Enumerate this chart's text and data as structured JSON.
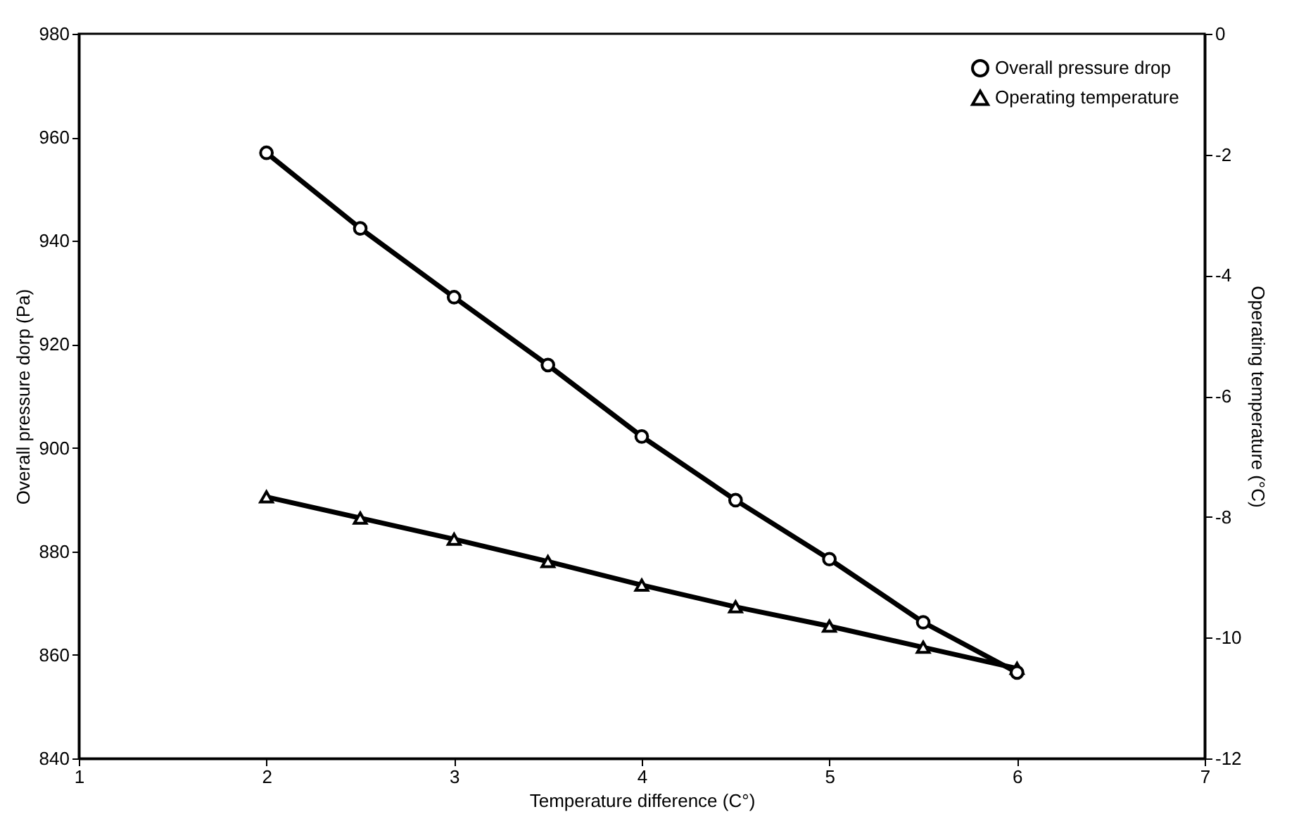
{
  "chart_data": {
    "type": "line",
    "xlabel": "Temperature difference (C°)",
    "ylabel": "Overall pressure dorp (Pa)",
    "y2label": "Operating temperature (°C)",
    "x": [
      2,
      2.5,
      3,
      3.5,
      4,
      4.5,
      5,
      5.5,
      6
    ],
    "series": [
      {
        "name": "Overall pressure drop",
        "color": "#000000",
        "marker": "circle",
        "values": [
          957,
          942.4,
          929.1,
          916,
          902.2,
          889.9,
          878.5,
          866.3,
          856.6
        ]
      },
      {
        "name": "Operating temperature",
        "color": "#000000",
        "marker": "triangle",
        "axis": "y2",
        "values": [
          -7.67,
          -8.02,
          -8.37,
          -8.74,
          -9.13,
          -9.49,
          -9.81,
          -10.16,
          -10.51
        ]
      }
    ],
    "xlim": [
      1,
      7
    ],
    "xticks": [
      1,
      2,
      3,
      4,
      5,
      6,
      7
    ],
    "ylim": [
      840,
      980
    ],
    "yticks": [
      840,
      860,
      880,
      900,
      920,
      940,
      960,
      980
    ],
    "y2lim": [
      -12,
      0
    ],
    "y2ticks": [
      -12,
      -10,
      -8,
      -6,
      -4,
      -2,
      0
    ],
    "grid": false,
    "legend": "top right",
    "line_style": "solid"
  }
}
